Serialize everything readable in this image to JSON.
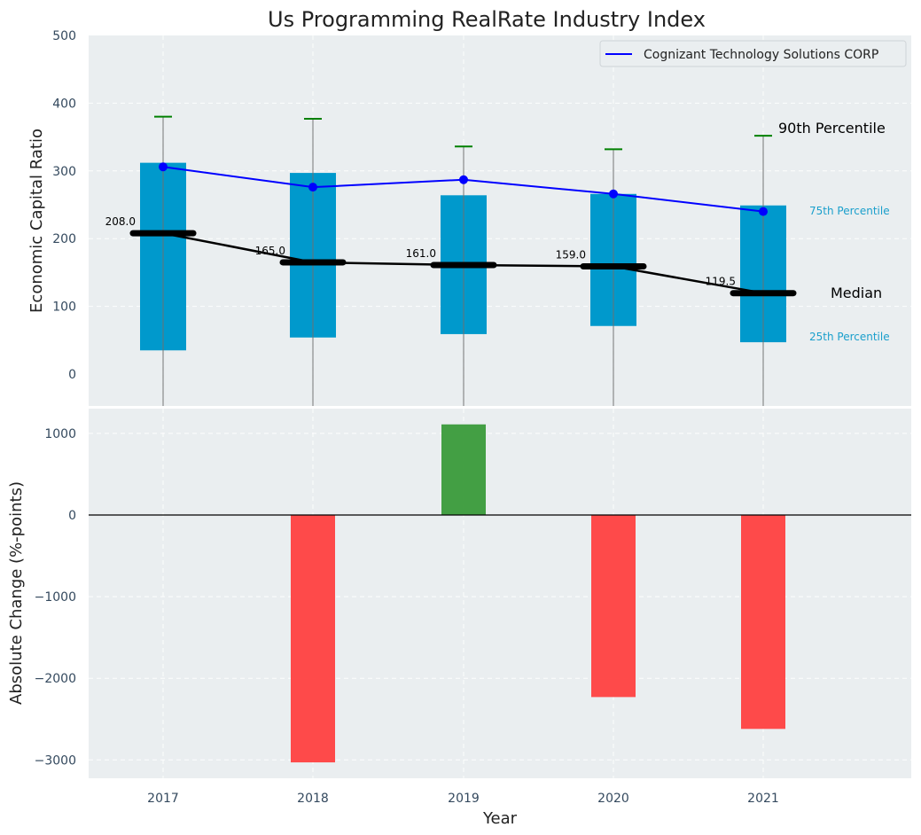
{
  "chart_data": [
    {
      "type": "bar",
      "subtype": "percentile-range-box",
      "title": "Us Programming RealRate Industry Index",
      "xlabel": "",
      "ylabel": "Economic Capital Ratio",
      "ylim": [
        -50,
        500
      ],
      "yticks": [
        0,
        100,
        200,
        300,
        400,
        500
      ],
      "categories": [
        "2017",
        "2018",
        "2019",
        "2020",
        "2021"
      ],
      "grid": true,
      "legend": {
        "position": "top-right",
        "entries": [
          "Cognizant Technology Solutions CORP"
        ]
      },
      "series": [
        {
          "name": "90th Percentile",
          "values": [
            380,
            377,
            336,
            332,
            352
          ]
        },
        {
          "name": "75th Percentile",
          "values": [
            312,
            297,
            264,
            266,
            249
          ]
        },
        {
          "name": "Median",
          "values": [
            208.0,
            165.0,
            161.0,
            159.0,
            119.5
          ]
        },
        {
          "name": "25th Percentile",
          "values": [
            35,
            54,
            59,
            71,
            47
          ]
        },
        {
          "name": "Cognizant Technology Solutions CORP",
          "values": [
            306,
            276,
            287,
            266,
            240
          ]
        }
      ],
      "median_labels": [
        "208.0",
        "165.0",
        "161.0",
        "159.0",
        "119.5"
      ],
      "annotations": {
        "p90": "90th Percentile",
        "p75": "75th Percentile",
        "median": "Median",
        "p25": "25th Percentile"
      },
      "colors": {
        "box": "#0099cc",
        "company": "#0000ff",
        "median": "#000000",
        "p90_cap": "#008000",
        "whisker": "#808080",
        "background": "#eaeef0"
      }
    },
    {
      "type": "bar",
      "title": "",
      "xlabel": "Year",
      "ylabel": "Absolute Change (%-points)",
      "ylim": [
        -3200,
        1300
      ],
      "yticks": [
        -3000,
        -2000,
        -1000,
        0,
        1000
      ],
      "categories": [
        "2017",
        "2018",
        "2019",
        "2020",
        "2021"
      ],
      "values": [
        null,
        -3030,
        1110,
        -2230,
        -2620
      ],
      "grid": true,
      "colors": {
        "positive": "#3a9a3a",
        "negative": "#ff4040",
        "zero_line": "#000000"
      }
    }
  ]
}
